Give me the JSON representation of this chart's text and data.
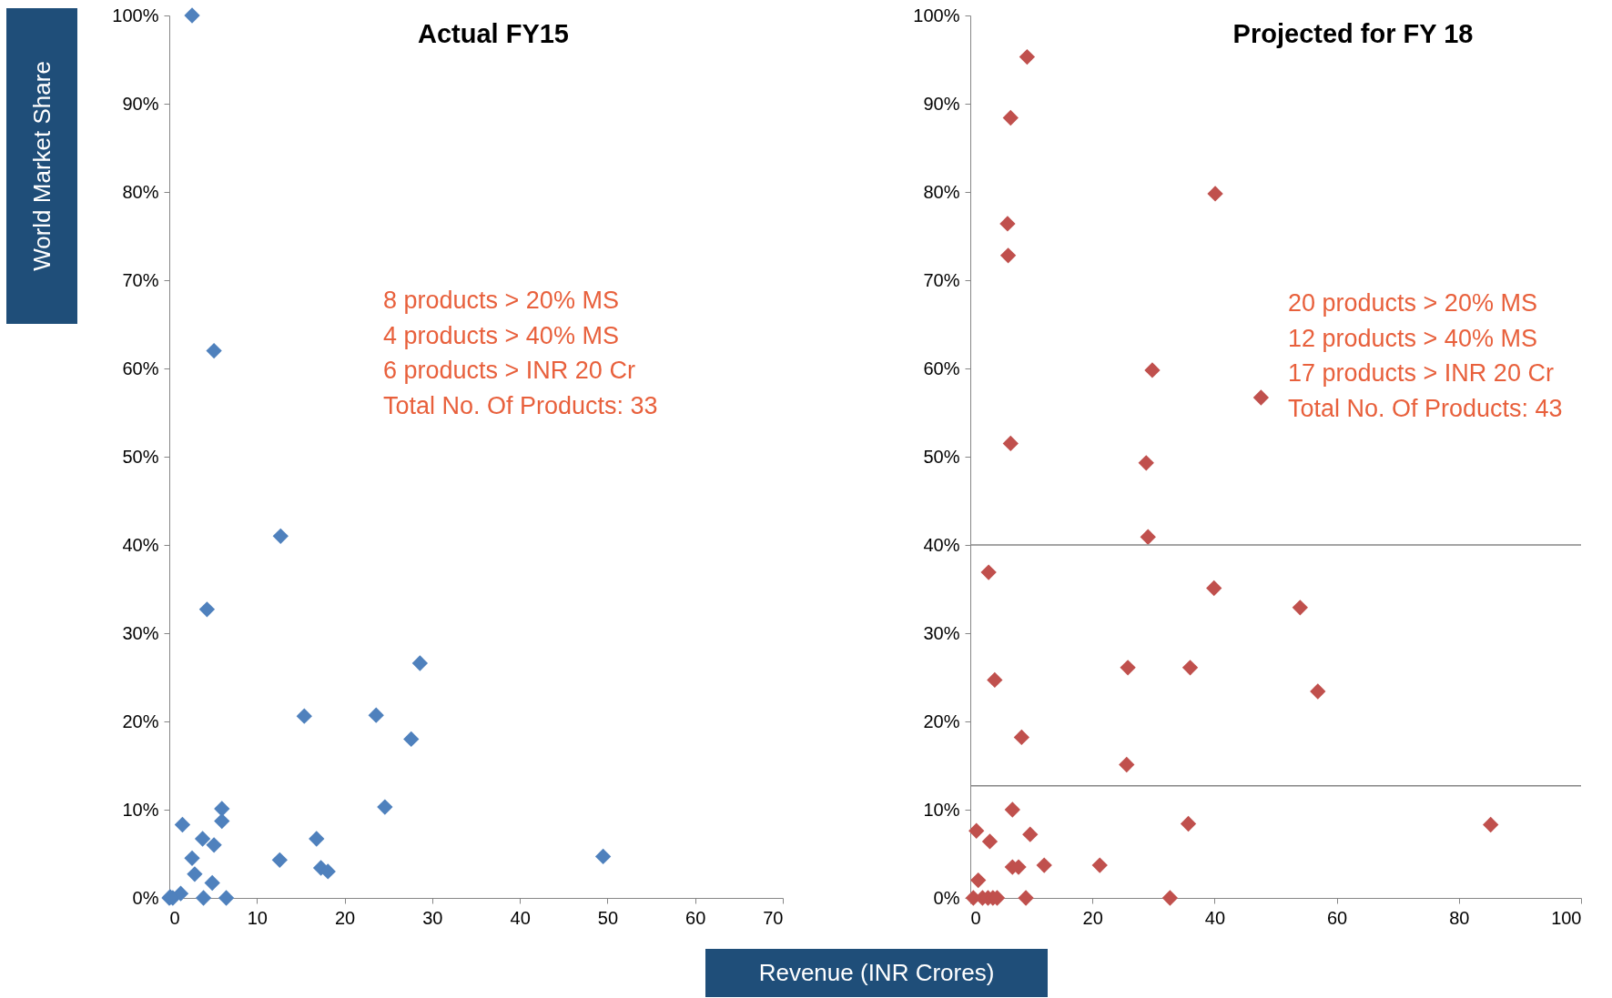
{
  "chart_data": [
    {
      "type": "scatter",
      "title": "Actual FY15",
      "ylabel": "World Market Share",
      "xlabel": "Revenue (INR Crores)",
      "marker": "diamond",
      "grid": false,
      "xlim": [
        0,
        70
      ],
      "xticks": [
        0,
        10,
        20,
        30,
        40,
        50,
        60,
        70
      ],
      "ylim": [
        0,
        100
      ],
      "yticks": [
        {
          "value": 0,
          "label": "0%"
        },
        {
          "value": 10,
          "label": "10%"
        },
        {
          "value": 20,
          "label": "20%"
        },
        {
          "value": 30,
          "label": "30%"
        },
        {
          "value": 40,
          "label": "40%"
        },
        {
          "value": 50,
          "label": "50%"
        },
        {
          "value": 60,
          "label": "60%"
        },
        {
          "value": 70,
          "label": "70%"
        },
        {
          "value": 80,
          "label": "80%"
        },
        {
          "value": 90,
          "label": "90%"
        },
        {
          "value": 100,
          "label": "100%"
        }
      ],
      "annotations": [
        "8 products > 20% MS",
        "4 products > 40% MS",
        "6 products > INR 20 Cr",
        "Total No. Of Products: 33"
      ],
      "series": [
        {
          "color": "#4f81bd",
          "x": [
            2.6,
            5.1,
            12.7,
            4.3,
            28.6,
            15.4,
            23.6,
            27.6,
            24.6,
            6.0,
            6.0,
            1.5,
            3.8,
            5.1,
            16.8,
            2.6,
            12.6,
            49.5,
            2.9,
            17.3,
            18.1,
            4.9,
            3.9,
            6.5,
            0,
            0.4,
            1.3,
            0.1
          ],
          "values": [
            100,
            62,
            41,
            32.7,
            26.6,
            20.6,
            20.7,
            18.0,
            10.3,
            10.1,
            8.7,
            8.3,
            6.7,
            6.0,
            6.7,
            4.5,
            4.3,
            4.7,
            2.7,
            3.4,
            3.0,
            1.7,
            0,
            0,
            0,
            0,
            0.5,
            0.1
          ]
        }
      ]
    },
    {
      "type": "scatter",
      "title": "Projected for FY 18",
      "marker": "diamond",
      "grid": false,
      "xlim": [
        0,
        100
      ],
      "xticks": [
        0,
        20,
        40,
        60,
        80,
        100
      ],
      "ylim": [
        0,
        100
      ],
      "yticks": [
        {
          "value": 0,
          "label": "0%"
        },
        {
          "value": 10,
          "label": "10%"
        },
        {
          "value": 20,
          "label": "20%"
        },
        {
          "value": 30,
          "label": "30%"
        },
        {
          "value": 40,
          "label": "40%"
        },
        {
          "value": 50,
          "label": "50%"
        },
        {
          "value": 60,
          "label": "60%"
        },
        {
          "value": 70,
          "label": "70%"
        },
        {
          "value": 80,
          "label": "80%"
        },
        {
          "value": 90,
          "label": "90%"
        },
        {
          "value": 100,
          "label": "100%"
        }
      ],
      "annotations": [
        "20 products > 20% MS",
        "12 products > 40% MS",
        "17 products > INR 20 Cr",
        "Total No. Of Products: 43"
      ],
      "ref_lines": [
        {
          "axis": "y",
          "value": 40,
          "color": "#868686"
        },
        {
          "axis": "y",
          "value": 12.7,
          "color": "#868686"
        }
      ],
      "series": [
        {
          "color": "#c0504d",
          "x": [
            9.3,
            6.6,
            40.1,
            6.1,
            6.2,
            29.8,
            47.6,
            6.6,
            28.8,
            29.1,
            3.0,
            39.9,
            54.0,
            25.8,
            36.0,
            4.0,
            56.9,
            8.4,
            25.6,
            6.9,
            35.7,
            85.2,
            1.0,
            9.8,
            3.2,
            6.9,
            7.9,
            12.1,
            21.2,
            1.3,
            0.5,
            2.0,
            2.9,
            3.7,
            4.4,
            9.1,
            32.7
          ],
          "values": [
            95.3,
            88.4,
            79.8,
            76.4,
            72.8,
            59.8,
            56.7,
            51.5,
            49.3,
            40.9,
            36.9,
            35.1,
            32.9,
            26.1,
            26.1,
            24.7,
            23.4,
            18.2,
            15.1,
            10.0,
            8.4,
            8.3,
            7.6,
            7.2,
            6.4,
            3.5,
            3.5,
            3.7,
            3.7,
            2.0,
            0,
            0,
            0,
            0,
            0,
            0,
            0
          ]
        }
      ]
    }
  ]
}
